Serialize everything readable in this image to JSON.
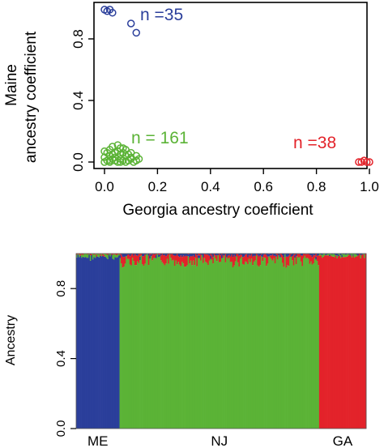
{
  "colors": {
    "maine": "#2b3f9b",
    "nj": "#5bb336",
    "georgia": "#e3232a",
    "axis": "#000000"
  },
  "chart_data": [
    {
      "type": "scatter",
      "xlabel": "Georgia ancestry coefficient",
      "ylabel_lines": [
        "Maine",
        "ancestry coefficient"
      ],
      "xlim": [
        0.0,
        1.0
      ],
      "ylim": [
        0.0,
        1.0
      ],
      "xticks": [
        "0.0",
        "0.2",
        "0.4",
        "0.6",
        "0.8",
        "1.0"
      ],
      "yticks": [
        "0.0",
        "0.4",
        "0.8"
      ],
      "grid": false,
      "annotations": [
        {
          "text": "n =35",
          "color": "maine"
        },
        {
          "text": "n = 161",
          "color": "nj"
        },
        {
          "text": "n =38",
          "color": "georgia"
        }
      ],
      "series": [
        {
          "group": "maine",
          "color": "maine",
          "x": [
            0.0,
            0.01,
            0.03,
            0.02,
            0.1,
            0.12
          ],
          "y": [
            0.99,
            0.98,
            0.97,
            0.99,
            0.9,
            0.84
          ]
        },
        {
          "group": "nj",
          "color": "nj",
          "x": [
            0.0,
            0.01,
            0.02,
            0.03,
            0.04,
            0.05,
            0.06,
            0.07,
            0.08,
            0.09,
            0.1,
            0.11,
            0.12,
            0.0,
            0.02,
            0.04,
            0.06,
            0.08,
            0.1,
            0.01,
            0.03,
            0.05,
            0.07,
            0.09,
            0.0,
            0.02,
            0.04,
            0.06,
            0.08,
            0.03,
            0.05,
            0.07,
            0.1,
            0.12,
            0.13,
            0.02,
            0.06
          ],
          "y": [
            0.0,
            0.01,
            0.0,
            0.02,
            0.01,
            0.0,
            0.02,
            0.01,
            0.0,
            0.01,
            0.02,
            0.0,
            0.01,
            0.03,
            0.04,
            0.03,
            0.05,
            0.04,
            0.03,
            0.06,
            0.05,
            0.07,
            0.06,
            0.05,
            0.07,
            0.08,
            0.06,
            0.09,
            0.08,
            0.1,
            0.11,
            0.09,
            0.06,
            0.04,
            0.02,
            0.01,
            0.0
          ]
        },
        {
          "group": "georgia",
          "color": "georgia",
          "x": [
            0.96,
            0.97,
            0.98,
            0.99,
            1.0
          ],
          "y": [
            0.0,
            0.0,
            0.01,
            0.0,
            0.0
          ]
        }
      ]
    },
    {
      "type": "bar",
      "stacked": true,
      "ylabel": "Ancestry",
      "ylim": [
        0.0,
        1.0
      ],
      "yticks": [
        "0.0",
        "0.4",
        "0.8"
      ],
      "categories": [
        "ME",
        "NJ",
        "GA"
      ],
      "counts": [
        35,
        161,
        38
      ],
      "series": [
        {
          "group": "maine",
          "color": "maine",
          "values": [
            0.98,
            0.01,
            0.005
          ]
        },
        {
          "group": "nj",
          "color": "nj",
          "values": [
            0.015,
            0.96,
            0.01
          ]
        },
        {
          "group": "georgia",
          "color": "georgia",
          "values": [
            0.005,
            0.03,
            0.985
          ]
        }
      ]
    }
  ]
}
